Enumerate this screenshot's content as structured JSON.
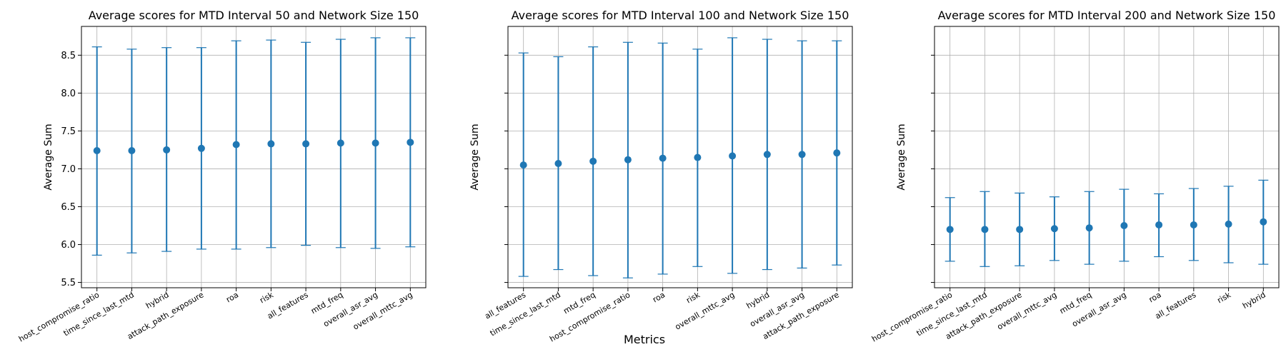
{
  "figure": {
    "shared_xlabel": "Metrics",
    "colors": {
      "series": "#1f77b4",
      "grid": "#b0b0b0",
      "axes": "#000000"
    }
  },
  "chart_data": [
    {
      "type": "scatter",
      "error_bars": true,
      "title": "Average scores for MTD Interval 50 and Network Size 150",
      "xlabel": "",
      "ylabel": "Average Sum",
      "ylim": [
        5.43,
        8.88
      ],
      "yticks": [
        "5.5",
        "6.0",
        "6.5",
        "7.0",
        "7.5",
        "8.0",
        "8.5"
      ],
      "grid": true,
      "categories": [
        "host_compromise_ratio",
        "time_since_last_mtd",
        "hybrid",
        "attack_path_exposure",
        "roa",
        "risk",
        "all_features",
        "mtd_freq",
        "overall_asr_avg",
        "overall_mttc_avg"
      ],
      "values": [
        7.24,
        7.24,
        7.25,
        7.27,
        7.32,
        7.33,
        7.33,
        7.34,
        7.34,
        7.35
      ],
      "err_low": [
        5.86,
        5.89,
        5.91,
        5.94,
        5.94,
        5.96,
        5.99,
        5.96,
        5.95,
        5.97
      ],
      "err_high": [
        8.61,
        8.58,
        8.6,
        8.6,
        8.69,
        8.7,
        8.67,
        8.71,
        8.73,
        8.73
      ]
    },
    {
      "type": "scatter",
      "error_bars": true,
      "title": "Average scores for MTD Interval 100 and Network Size 150",
      "xlabel": "",
      "ylabel": "Average Sum",
      "ylim": [
        5.43,
        8.88
      ],
      "yticks": [],
      "grid": true,
      "categories": [
        "all_features",
        "time_since_last_mtd",
        "mtd_freq",
        "host_compromise_ratio",
        "roa",
        "risk",
        "overall_mttc_avg",
        "hybrid",
        "overall_asr_avg",
        "attack_path_exposure"
      ],
      "values": [
        7.05,
        7.07,
        7.1,
        7.12,
        7.14,
        7.15,
        7.17,
        7.19,
        7.19,
        7.21
      ],
      "err_low": [
        5.58,
        5.67,
        5.59,
        5.56,
        5.61,
        5.71,
        5.62,
        5.67,
        5.69,
        5.73
      ],
      "err_high": [
        8.53,
        8.48,
        8.61,
        8.67,
        8.66,
        8.58,
        8.73,
        8.71,
        8.69,
        8.69
      ]
    },
    {
      "type": "scatter",
      "error_bars": true,
      "title": "Average scores for MTD Interval 200 and Network Size 150",
      "xlabel": "",
      "ylabel": "Average Sum",
      "ylim": [
        5.43,
        8.88
      ],
      "yticks": [],
      "grid": true,
      "categories": [
        "host_compromise_ratio",
        "time_since_last_mtd",
        "attack_path_exposure",
        "overall_mttc_avg",
        "mtd_freq",
        "overall_asr_avg",
        "roa",
        "all_features",
        "risk",
        "hybrid"
      ],
      "values": [
        6.2,
        6.2,
        6.2,
        6.21,
        6.22,
        6.25,
        6.26,
        6.26,
        6.27,
        6.3
      ],
      "err_low": [
        5.78,
        5.71,
        5.72,
        5.79,
        5.74,
        5.78,
        5.84,
        5.79,
        5.76,
        5.74
      ],
      "err_high": [
        6.62,
        6.7,
        6.68,
        6.63,
        6.7,
        6.73,
        6.67,
        6.74,
        6.77,
        6.85
      ]
    }
  ]
}
